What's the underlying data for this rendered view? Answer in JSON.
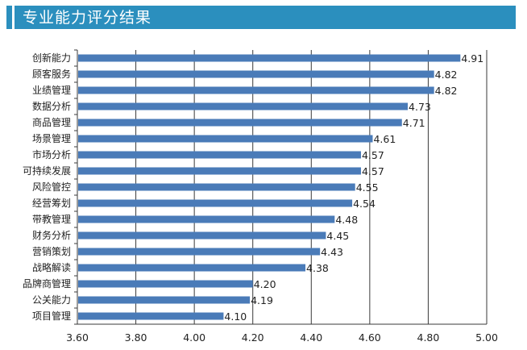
{
  "title": "专业能力评分结果",
  "chart_data": {
    "type": "bar",
    "orientation": "horizontal",
    "title": "专业能力评分结果",
    "xlabel": "",
    "ylabel": "",
    "xlim": [
      3.6,
      5.0
    ],
    "grid": "vertical",
    "bar_color": "#4a7bb8",
    "accent_color": "#2b8fbe",
    "categories": [
      "创新能力",
      "顾客服务",
      "业绩管理",
      "数据分析",
      "商品管理",
      "场景管理",
      "市场分析",
      "可持续发展",
      "风险管控",
      "经营筹划",
      "带教管理",
      "财务分析",
      "营销策划",
      "战略解读",
      "品牌商管理",
      "公关能力",
      "项目管理"
    ],
    "values": [
      4.91,
      4.82,
      4.82,
      4.73,
      4.71,
      4.61,
      4.57,
      4.57,
      4.55,
      4.54,
      4.48,
      4.45,
      4.43,
      4.38,
      4.2,
      4.19,
      4.1
    ],
    "value_labels": [
      "4.91",
      "4.82",
      "4.82",
      "4.73",
      "4.71",
      "4.61",
      "4.57",
      "4.57",
      "4.55",
      "4.54",
      "4.48",
      "4.45",
      "4.43",
      "4.38",
      "4.20",
      "4.19",
      "4.10"
    ],
    "ticks": [
      3.6,
      3.8,
      4.0,
      4.2,
      4.4,
      4.6,
      4.8,
      5.0
    ],
    "tick_labels": [
      "3.60",
      "3.80",
      "4.00",
      "4.20",
      "4.40",
      "4.60",
      "4.80",
      "5.00"
    ]
  }
}
